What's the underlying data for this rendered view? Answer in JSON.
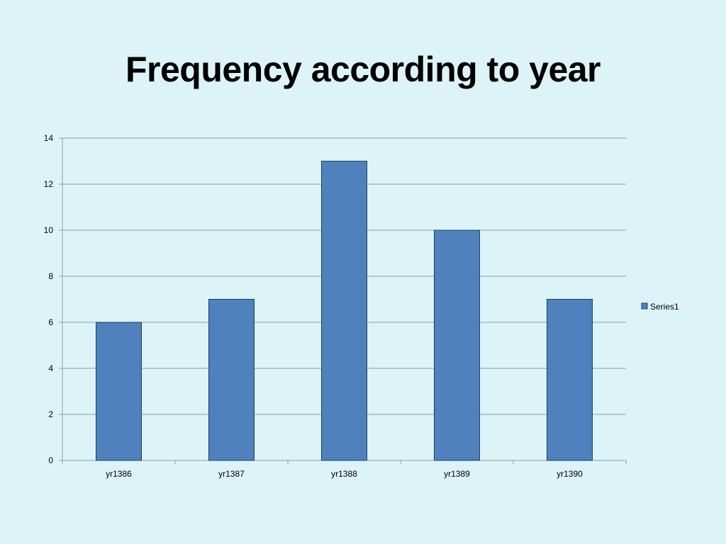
{
  "slide": {
    "title": "Frequency according to year",
    "background_color": "#dcf4f8"
  },
  "chart_data": {
    "type": "bar",
    "title": "",
    "xlabel": "",
    "ylabel": "",
    "categories": [
      "yr1386",
      "yr1387",
      "yr1388",
      "yr1389",
      "yr1390"
    ],
    "series": [
      {
        "name": "Series1",
        "values": [
          6,
          7,
          13,
          10,
          7
        ],
        "color": "#4f81bd",
        "border_color": "#1f3f66"
      }
    ],
    "ylim": [
      0,
      14
    ],
    "yticks": [
      "0",
      "2",
      "4",
      "6",
      "8",
      "10",
      "12",
      "14"
    ],
    "grid": true,
    "legend_position": "right"
  }
}
